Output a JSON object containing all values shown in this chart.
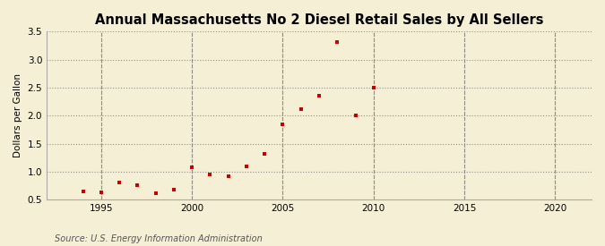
{
  "title": "Annual Massachusetts No 2 Diesel Retail Sales by All Sellers",
  "ylabel": "Dollars per Gallon",
  "source": "Source: U.S. Energy Information Administration",
  "background_color": "#f5efd5",
  "marker_color": "#cc0000",
  "years": [
    1994,
    1995,
    1996,
    1997,
    1998,
    1999,
    2000,
    2001,
    2002,
    2003,
    2004,
    2005,
    2006,
    2007,
    2008,
    2009,
    2010
  ],
  "values": [
    0.65,
    0.63,
    0.8,
    0.75,
    0.61,
    0.67,
    1.07,
    0.95,
    0.92,
    1.1,
    1.31,
    1.85,
    2.12,
    2.35,
    3.32,
    2.0,
    2.5
  ],
  "xlim": [
    1992,
    2022
  ],
  "ylim": [
    0.5,
    3.5
  ],
  "xticks": [
    1995,
    2000,
    2005,
    2010,
    2015,
    2020
  ],
  "yticks": [
    0.5,
    1.0,
    1.5,
    2.0,
    2.5,
    3.0,
    3.5
  ],
  "title_fontsize": 10.5,
  "label_fontsize": 7.5,
  "tick_fontsize": 7.5,
  "source_fontsize": 7.0
}
